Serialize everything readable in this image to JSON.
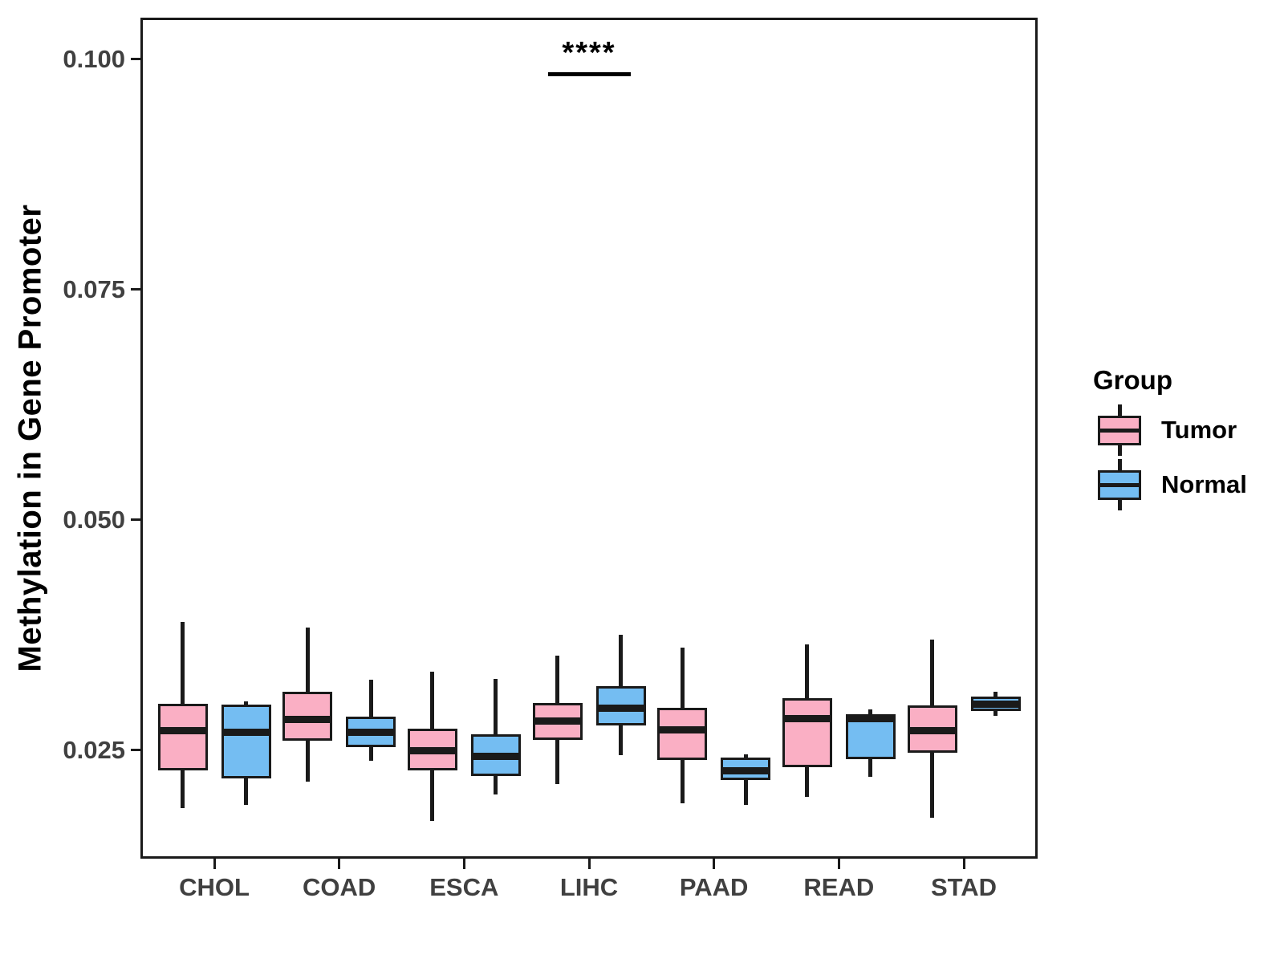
{
  "figure": {
    "background": "#ffffff"
  },
  "style": {
    "line_color": "#1a1a1a",
    "tick_label_color": "#404040",
    "text_color": "#000000",
    "tumor_fill": "#FAAFC4",
    "normal_fill": "#74BDF2"
  },
  "chart_data": {
    "type": "boxplot",
    "title": "",
    "xlabel": "",
    "ylabel": "Methylation in Gene Promoter",
    "categories": [
      "CHOL",
      "COAD",
      "ESCA",
      "LIHC",
      "PAAD",
      "READ",
      "STAD"
    ],
    "y_ticks": [
      0.025,
      0.05,
      0.075,
      0.1
    ],
    "y_tick_labels": [
      "0.025",
      "0.050",
      "0.075",
      "0.100"
    ],
    "ylim": [
      0.0132,
      0.1045
    ],
    "grid": false,
    "legend": {
      "title": "Group",
      "position": "right",
      "entries": [
        {
          "label": "Tumor",
          "color": "#FAAFC4"
        },
        {
          "label": "Normal",
          "color": "#74BDF2"
        }
      ]
    },
    "series": [
      {
        "name": "Tumor",
        "color": "#FAAFC4",
        "stats": [
          {
            "category": "CHOL",
            "whisker_low": 0.0187,
            "q1": 0.0228,
            "median": 0.0271,
            "q3": 0.03,
            "whisker_high": 0.0389
          },
          {
            "category": "COAD",
            "whisker_low": 0.0216,
            "q1": 0.026,
            "median": 0.0283,
            "q3": 0.0313,
            "whisker_high": 0.0383
          },
          {
            "category": "ESCA",
            "whisker_low": 0.0173,
            "q1": 0.0228,
            "median": 0.0249,
            "q3": 0.0273,
            "whisker_high": 0.0335
          },
          {
            "category": "LIHC",
            "whisker_low": 0.0213,
            "q1": 0.0261,
            "median": 0.0281,
            "q3": 0.0301,
            "whisker_high": 0.0352
          },
          {
            "category": "PAAD",
            "whisker_low": 0.0192,
            "q1": 0.0239,
            "median": 0.0272,
            "q3": 0.0296,
            "whisker_high": 0.0361
          },
          {
            "category": "READ",
            "whisker_low": 0.0199,
            "q1": 0.0231,
            "median": 0.0284,
            "q3": 0.0306,
            "whisker_high": 0.0365
          },
          {
            "category": "STAD",
            "whisker_low": 0.0176,
            "q1": 0.0247,
            "median": 0.0271,
            "q3": 0.0298,
            "whisker_high": 0.037
          }
        ]
      },
      {
        "name": "Normal",
        "color": "#74BDF2",
        "stats": [
          {
            "category": "CHOL",
            "whisker_low": 0.019,
            "q1": 0.0219,
            "median": 0.0269,
            "q3": 0.0299,
            "whisker_high": 0.0303
          },
          {
            "category": "COAD",
            "whisker_low": 0.0238,
            "q1": 0.0253,
            "median": 0.0269,
            "q3": 0.0286,
            "whisker_high": 0.0326
          },
          {
            "category": "ESCA",
            "whisker_low": 0.0202,
            "q1": 0.0222,
            "median": 0.0243,
            "q3": 0.0267,
            "whisker_high": 0.0327
          },
          {
            "category": "LIHC",
            "whisker_low": 0.0244,
            "q1": 0.0277,
            "median": 0.0295,
            "q3": 0.0319,
            "whisker_high": 0.0375
          },
          {
            "category": "PAAD",
            "whisker_low": 0.019,
            "q1": 0.0217,
            "median": 0.0227,
            "q3": 0.0242,
            "whisker_high": 0.0245
          },
          {
            "category": "READ",
            "whisker_low": 0.0221,
            "q1": 0.024,
            "median": 0.0284,
            "q3": 0.0289,
            "whisker_high": 0.0294
          },
          {
            "category": "STAD",
            "whisker_low": 0.0287,
            "q1": 0.0292,
            "median": 0.03,
            "q3": 0.0308,
            "whisker_high": 0.0313
          }
        ]
      }
    ],
    "annotation": {
      "text": "****",
      "category": "LIHC",
      "has_underline": true
    }
  }
}
